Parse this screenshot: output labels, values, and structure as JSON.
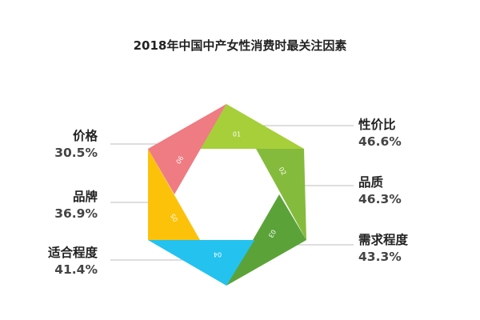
{
  "chart_data": {
    "type": "pie",
    "title": "2018年中国中产女性消费时最关注因素",
    "segments": [
      {
        "num": "01",
        "name": "性价比",
        "value_text": "46.6%",
        "value": 46.6,
        "color": "#a6cf3a"
      },
      {
        "num": "02",
        "name": "品质",
        "value_text": "46.3%",
        "value": 46.3,
        "color": "#85bb3c"
      },
      {
        "num": "03",
        "name": "需求程度",
        "value_text": "43.3%",
        "value": 43.3,
        "color": "#5ba338"
      },
      {
        "num": "04",
        "name": "适合程度",
        "value_text": "41.4%",
        "value": 41.4,
        "color": "#24c2ef"
      },
      {
        "num": "05",
        "name": "品牌",
        "value_text": "36.9%",
        "value": 36.9,
        "color": "#fcc20a"
      },
      {
        "num": "06",
        "name": "价格",
        "value_text": "30.5%",
        "value": 30.5,
        "color": "#ef7b83"
      }
    ]
  }
}
